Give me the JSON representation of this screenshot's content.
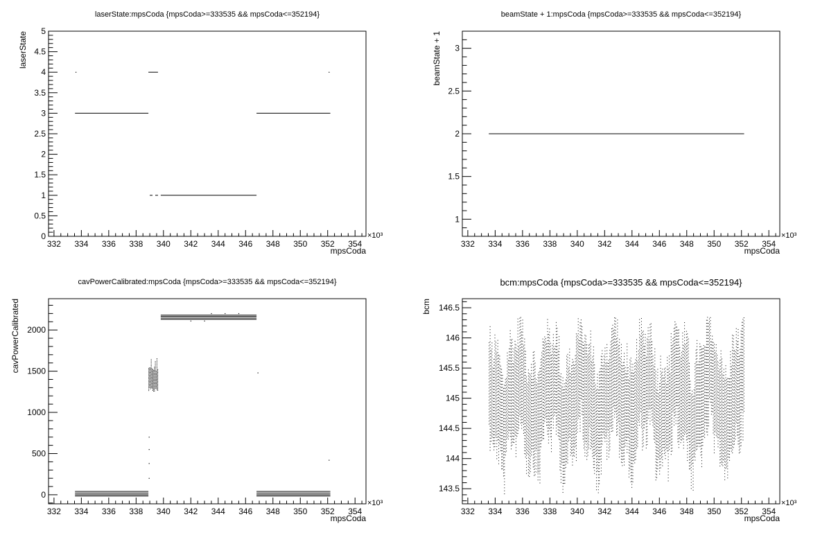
{
  "chart_data": [
    {
      "type": "scatter",
      "title": "laserState:mpsCoda {mpsCoda>=333535 && mpsCoda<=352194}",
      "xlabel": "mpsCoda",
      "ylabel": "laserState",
      "x_exponent": "×10³",
      "xlim": [
        331.6,
        354.8
      ],
      "ylim": [
        0,
        5
      ],
      "x_ticks": [
        332,
        334,
        336,
        338,
        340,
        342,
        344,
        346,
        348,
        350,
        352,
        354
      ],
      "x_tick_labels": [
        "332",
        "334",
        "336",
        "338",
        "340",
        "342",
        "344",
        "346",
        "348",
        "350",
        "352",
        "354"
      ],
      "y_ticks": [
        0,
        0.5,
        1,
        1.5,
        2,
        2.5,
        3,
        3.5,
        4,
        4.5,
        5
      ],
      "y_tick_labels": [
        "0",
        "0.5",
        "1",
        "1.5",
        "2",
        "2.5",
        "3",
        "3.5",
        "4",
        "4.5",
        "5"
      ],
      "segments": [
        {
          "x": [
            333.535,
            338.9
          ],
          "y": 3
        },
        {
          "x": [
            338.9,
            339.6
          ],
          "y": 4
        },
        {
          "x": [
            339.0,
            339.2
          ],
          "y": 1
        },
        {
          "x": [
            339.4,
            339.6
          ],
          "y": 1
        },
        {
          "x": [
            339.8,
            346.8
          ],
          "y": 1
        },
        {
          "x": [
            346.8,
            352.194
          ],
          "y": 3
        }
      ],
      "points": [
        [
          333.6,
          4
        ],
        [
          352.1,
          4
        ]
      ],
      "grid": false,
      "legend": false
    },
    {
      "type": "scatter",
      "title": "beamState + 1:mpsCoda {mpsCoda>=333535 && mpsCoda<=352194}",
      "xlabel": "mpsCoda",
      "ylabel": "beamState + 1",
      "x_exponent": "×10³",
      "xlim": [
        331.6,
        354.8
      ],
      "ylim": [
        0.8,
        3.2
      ],
      "x_ticks": [
        332,
        334,
        336,
        338,
        340,
        342,
        344,
        346,
        348,
        350,
        352,
        354
      ],
      "x_tick_labels": [
        "332",
        "334",
        "336",
        "338",
        "340",
        "342",
        "344",
        "346",
        "348",
        "350",
        "352",
        "354"
      ],
      "y_ticks": [
        1,
        1.5,
        2,
        2.5,
        3
      ],
      "y_tick_labels": [
        "1",
        "1.5",
        "2",
        "2.5",
        "3"
      ],
      "segments": [
        {
          "x": [
            333.535,
            352.194
          ],
          "y": 2
        }
      ],
      "points": [],
      "grid": false,
      "legend": false
    },
    {
      "type": "scatter",
      "title": "cavPowerCalibrated:mpsCoda {mpsCoda>=333535 && mpsCoda<=352194}",
      "xlabel": "mpsCoda",
      "ylabel": "cavPowerCalibrated",
      "x_exponent": "×10³",
      "xlim": [
        331.6,
        354.8
      ],
      "ylim": [
        -110,
        2380
      ],
      "x_ticks": [
        332,
        334,
        336,
        338,
        340,
        342,
        344,
        346,
        348,
        350,
        352,
        354
      ],
      "x_tick_labels": [
        "332",
        "334",
        "336",
        "338",
        "340",
        "342",
        "344",
        "346",
        "348",
        "350",
        "352",
        "354"
      ],
      "y_ticks": [
        0,
        500,
        1000,
        1500,
        2000
      ],
      "y_tick_labels": [
        "0",
        "500",
        "1000",
        "1500",
        "2000"
      ],
      "segments": [
        {
          "x": [
            333.535,
            338.9
          ],
          "y": 40
        },
        {
          "x": [
            333.535,
            338.9
          ],
          "y": 20
        },
        {
          "x": [
            333.535,
            338.9
          ],
          "y": 0
        },
        {
          "x": [
            333.535,
            338.9
          ],
          "y": -15
        },
        {
          "x": [
            339.8,
            346.8
          ],
          "y": 2180
        },
        {
          "x": [
            339.8,
            346.8
          ],
          "y": 2165
        },
        {
          "x": [
            339.8,
            346.8
          ],
          "y": 2145
        },
        {
          "x": [
            339.8,
            346.8
          ],
          "y": 2130
        },
        {
          "x": [
            346.8,
            352.194
          ],
          "y": 40
        },
        {
          "x": [
            346.8,
            352.194
          ],
          "y": 20
        },
        {
          "x": [
            346.8,
            352.194
          ],
          "y": 0
        },
        {
          "x": [
            346.8,
            352.194
          ],
          "y": -15
        }
      ],
      "clusters": [
        {
          "x": [
            338.9,
            339.6
          ],
          "y": [
            1250,
            1680
          ]
        }
      ],
      "points": [
        [
          338.95,
          700
        ],
        [
          338.95,
          550
        ],
        [
          338.95,
          380
        ],
        [
          338.95,
          200
        ],
        [
          346.9,
          1480
        ],
        [
          352.1,
          420
        ],
        [
          343.5,
          2200
        ],
        [
          344.5,
          2200
        ],
        [
          345.5,
          2200
        ],
        [
          342.0,
          2110
        ],
        [
          343.0,
          2110
        ]
      ],
      "grid": false,
      "legend": false
    },
    {
      "type": "scatter",
      "title": "bcm:mpsCoda {mpsCoda>=333535 && mpsCoda<=352194}",
      "xlabel": "mpsCoda",
      "ylabel": "bcm",
      "x_exponent": "×10³",
      "xlim": [
        331.6,
        354.8
      ],
      "ylim": [
        143.25,
        146.65
      ],
      "x_ticks": [
        332,
        334,
        336,
        338,
        340,
        342,
        344,
        346,
        348,
        350,
        352,
        354
      ],
      "x_tick_labels": [
        "332",
        "334",
        "336",
        "338",
        "340",
        "342",
        "344",
        "346",
        "348",
        "350",
        "352",
        "354"
      ],
      "y_ticks": [
        143.5,
        144,
        144.5,
        145,
        145.5,
        146,
        146.5
      ],
      "y_tick_labels": [
        "143.5",
        "144",
        "144.5",
        "145",
        "145.5",
        "146",
        "146.5"
      ],
      "x_range": [
        333.535,
        352.194
      ],
      "y_band": [
        143.4,
        146.35
      ],
      "grid": false,
      "legend": false
    }
  ]
}
